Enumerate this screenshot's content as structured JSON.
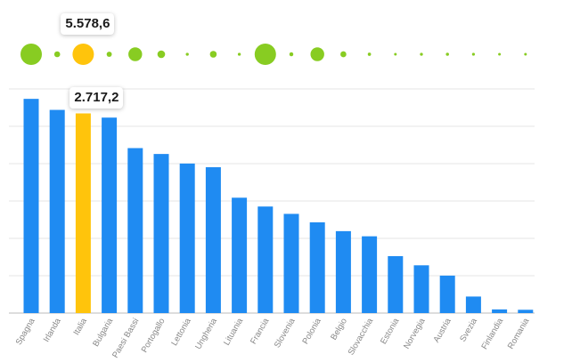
{
  "chart_data": {
    "type": "bar",
    "categories": [
      "Spagna",
      "Irlanda",
      "Italia",
      "Bulgaria",
      "Paesi Bassi",
      "Portogallo",
      "Lettonia",
      "Ungheria",
      "Lituania",
      "Francia",
      "Slovenia",
      "Polonia",
      "Belgio",
      "Slovacchia",
      "Estonia",
      "Norvegia",
      "Austria",
      "Svezia",
      "Finlandia",
      "Romania"
    ],
    "values": [
      2915,
      2765,
      2717.2,
      2660,
      2245,
      2165,
      2035,
      1985,
      1570,
      1450,
      1350,
      1235,
      1115,
      1045,
      775,
      650,
      510,
      225,
      50,
      45
    ],
    "highlight_index": 2,
    "highlight_label": "2.717,2",
    "bubble_values": [
      5578.6,
      420,
      5578.6,
      330,
      2300,
      720,
      110,
      560,
      110,
      5578.6,
      190,
      2300,
      430,
      130,
      70,
      110,
      120,
      100,
      50,
      30
    ],
    "bubble_label": "5.578,6",
    "ylim": [
      0,
      3050
    ],
    "grid": true,
    "colors": {
      "bar": "#1f8bf2",
      "highlight": "#ffc40c",
      "bubble": "#88cc22",
      "grid": "#e6e6e6",
      "axis": "#bbbbbb",
      "tick_label": "#888888"
    }
  }
}
